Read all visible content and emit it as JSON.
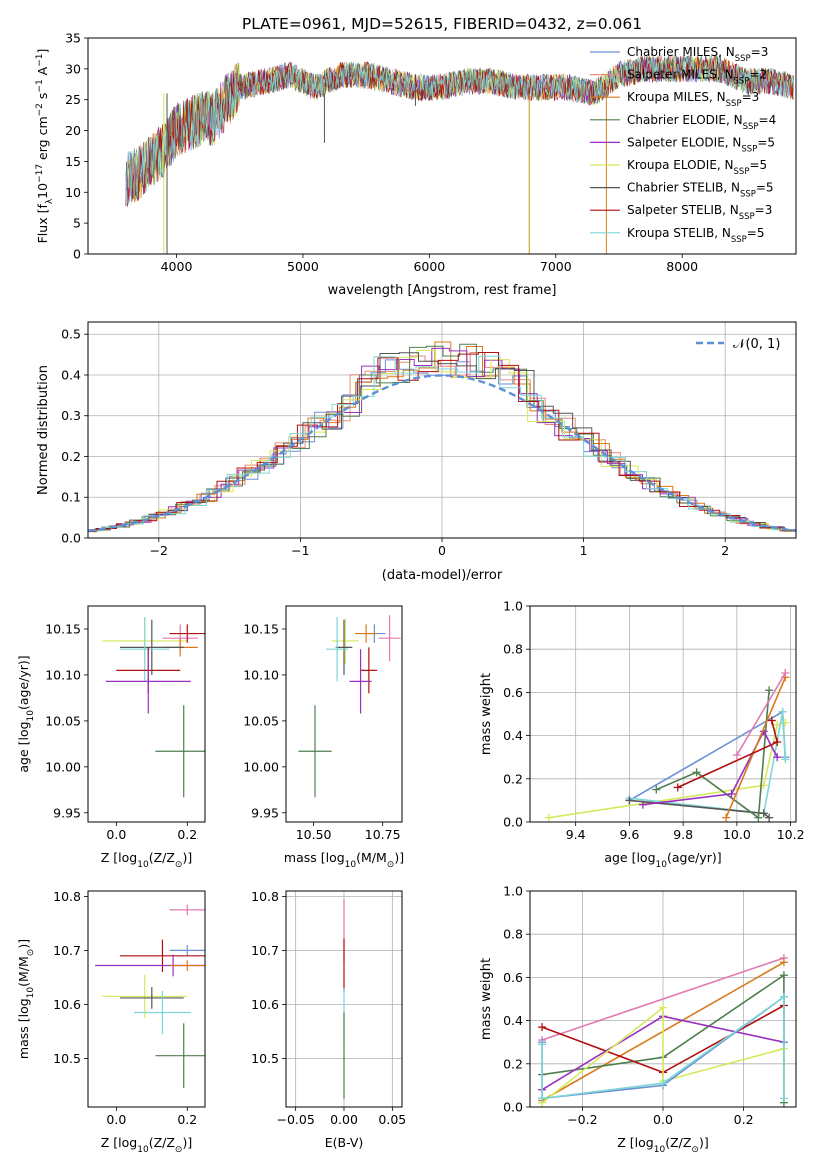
{
  "figure_title": "PLATE=0961, MJD=52615, FIBERID=0432, z=0.061",
  "colors": {
    "chabrier_miles": "#6b8fd6",
    "salpeter_miles": "#e78a7a",
    "kroupa_miles": "#d97a1a",
    "chabrier_elodie": "#4f7f4f",
    "salpeter_elodie": "#9b30c0",
    "kroupa_elodie": "#d6e85a",
    "chabrier_stelib": "#555555",
    "salpeter_stelib": "#b01010",
    "kroupa_stelib": "#7fd6d6",
    "pink": "#e07ab0",
    "gaussian": "#5b8fd6"
  },
  "chart_data": [
    {
      "type": "line",
      "title": "PLATE=0961, MJD=52615, FIBERID=0432, z=0.061",
      "xlabel": "wavelength [Angstrom, rest frame]",
      "ylabel_parts": [
        "Flux [f",
        "λ",
        "10",
        "−17",
        " erg cm",
        "−2",
        " s",
        "−1",
        " A",
        "−1",
        "]"
      ],
      "xlim": [
        3300,
        8900
      ],
      "ylim": [
        0,
        35
      ],
      "xticks": [
        "4000",
        "5000",
        "6000",
        "7000",
        "8000"
      ],
      "yticks": [
        "0",
        "5",
        "10",
        "15",
        "20",
        "25",
        "30",
        "35"
      ],
      "legend": [
        {
          "name": "Chabrier MILES, N",
          "sub": "SSP",
          "val": "=3",
          "color": "#6b8fd6"
        },
        {
          "name": "Salpeter MILES, N",
          "sub": "SSP",
          "val": "=2",
          "color": "#e78a7a"
        },
        {
          "name": "Kroupa MILES, N",
          "sub": "SSP",
          "val": "=3",
          "color": "#d97a1a"
        },
        {
          "name": "Chabrier ELODIE, N",
          "sub": "SSP",
          "val": "=4",
          "color": "#4f7f4f"
        },
        {
          "name": "Salpeter ELODIE, N",
          "sub": "SSP",
          "val": "=5",
          "color": "#9b30c0"
        },
        {
          "name": "Kroupa ELODIE, N",
          "sub": "SSP",
          "val": "=5",
          "color": "#d6e85a"
        },
        {
          "name": "Chabrier STELIB, N",
          "sub": "SSP",
          "val": "=5",
          "color": "#555555"
        },
        {
          "name": "Salpeter STELIB, N",
          "sub": "SSP",
          "val": "=3",
          "color": "#b01010"
        },
        {
          "name": "Kroupa STELIB, N",
          "sub": "SSP",
          "val": "=5",
          "color": "#7fd6d6"
        }
      ],
      "spectrum_envelope": {
        "x": [
          3600,
          3700,
          3800,
          3900,
          4000,
          4100,
          4200,
          4300,
          4400,
          4500,
          4700,
          4900,
          5100,
          5300,
          5500,
          5700,
          5900,
          6100,
          6300,
          6500,
          6700,
          6900,
          7100,
          7300,
          7500,
          7700,
          7900,
          8100,
          8300,
          8500,
          8700,
          8900
        ],
        "y": [
          12,
          13,
          15,
          17,
          20,
          21,
          22,
          22,
          25,
          27,
          28,
          29,
          27,
          29,
          29,
          28,
          27,
          27,
          28,
          28,
          27,
          27,
          27,
          26,
          29,
          30,
          30,
          30,
          30,
          28,
          28,
          27
        ]
      }
    },
    {
      "type": "line",
      "xlabel": "(data-model)/error",
      "ylabel": "Normed distribution",
      "xlim": [
        -2.5,
        2.5
      ],
      "ylim": [
        0,
        0.53
      ],
      "xticks": [
        "−2",
        "−1",
        "0",
        "1",
        "2"
      ],
      "yticks": [
        "0.0",
        "0.1",
        "0.2",
        "0.3",
        "0.4",
        "0.5"
      ],
      "legend_label": "𝒩(0, 1)",
      "grid": true
    },
    {
      "type": "scatter",
      "xlabel_parts": [
        "Z [log",
        "10",
        "(Z/Z",
        "⊙",
        ")]"
      ],
      "ylabel_parts": [
        "age  [log",
        "10",
        "(age/yr)]"
      ],
      "xlim": [
        -0.08,
        0.25
      ],
      "ylim": [
        9.94,
        10.175
      ],
      "xticks": [
        "0.0",
        "0.2"
      ],
      "yticks": [
        "9.95",
        "10.00",
        "10.05",
        "10.10",
        "10.15"
      ],
      "points": [
        {
          "x": 0.08,
          "y": 10.137,
          "xerr": 0.12,
          "yerr": 0.025,
          "color": "#d6e85a"
        },
        {
          "x": 0.18,
          "y": 10.14,
          "xerr": 0.05,
          "yerr": 0.015,
          "color": "#e07ab0"
        },
        {
          "x": 0.2,
          "y": 10.145,
          "xerr": 0.05,
          "yerr": 0.01,
          "color": "#b01010"
        },
        {
          "x": 0.18,
          "y": 10.13,
          "xerr": 0.05,
          "yerr": 0.01,
          "color": "#d97a1a"
        },
        {
          "x": 0.1,
          "y": 10.13,
          "xerr": 0.09,
          "yerr": 0.03,
          "color": "#555555"
        },
        {
          "x": 0.08,
          "y": 10.128,
          "xerr": 0.07,
          "yerr": 0.035,
          "color": "#7fd6d6"
        },
        {
          "x": 0.09,
          "y": 10.105,
          "xerr": 0.09,
          "yerr": 0.025,
          "color": "#b01010"
        },
        {
          "x": 0.09,
          "y": 10.093,
          "xerr": 0.12,
          "yerr": 0.035,
          "color": "#9b30c0"
        },
        {
          "x": 0.19,
          "y": 10.017,
          "xerr": 0.08,
          "yerr": 0.05,
          "color": "#4f7f4f"
        }
      ]
    },
    {
      "type": "scatter",
      "xlabel_parts": [
        "mass [log",
        "10",
        "(M/M",
        "⊙",
        ")]"
      ],
      "xlim": [
        10.4,
        10.82
      ],
      "ylim": [
        9.94,
        10.175
      ],
      "xticks": [
        "10.50",
        "10.75"
      ],
      "yticks": [
        "9.95",
        "10.00",
        "10.05",
        "10.10",
        "10.15"
      ],
      "points": [
        {
          "x": 10.615,
          "y": 10.137,
          "xerr": 0.05,
          "yerr": 0.025,
          "color": "#d6e85a"
        },
        {
          "x": 10.775,
          "y": 10.14,
          "xerr": 0.04,
          "yerr": 0.025,
          "color": "#e07ab0"
        },
        {
          "x": 10.72,
          "y": 10.145,
          "xerr": 0.04,
          "yerr": 0.01,
          "color": "#6b8fd6"
        },
        {
          "x": 10.69,
          "y": 10.145,
          "xerr": 0.04,
          "yerr": 0.01,
          "color": "#d97a1a"
        },
        {
          "x": 10.61,
          "y": 10.13,
          "xerr": 0.03,
          "yerr": 0.03,
          "color": "#555555"
        },
        {
          "x": 10.585,
          "y": 10.128,
          "xerr": 0.04,
          "yerr": 0.035,
          "color": "#7fd6d6"
        },
        {
          "x": 10.7,
          "y": 10.105,
          "xerr": 0.03,
          "yerr": 0.025,
          "color": "#b01010"
        },
        {
          "x": 10.67,
          "y": 10.093,
          "xerr": 0.04,
          "yerr": 0.035,
          "color": "#9b30c0"
        },
        {
          "x": 10.505,
          "y": 10.017,
          "xerr": 0.06,
          "yerr": 0.05,
          "color": "#4f7f4f"
        }
      ]
    },
    {
      "type": "line",
      "xlabel_parts": [
        "age  [log",
        "10",
        "(age/yr)]"
      ],
      "ylabel": "mass weight",
      "xlim": [
        9.23,
        10.22
      ],
      "ylim": [
        0,
        1.0
      ],
      "xticks": [
        "9.4",
        "9.6",
        "9.8",
        "10.0",
        "10.2"
      ],
      "yticks": [
        "0.0",
        "0.2",
        "0.4",
        "0.6",
        "0.8",
        "1.0"
      ],
      "grid": true,
      "series": [
        {
          "color": "#d6e85a",
          "x": [
            9.3,
            10.1,
            10.15,
            10.18
          ],
          "y": [
            0.02,
            0.17,
            0.45,
            0.46
          ]
        },
        {
          "color": "#6b8fd6",
          "x": [
            9.6,
            10.17,
            10.18
          ],
          "y": [
            0.1,
            0.51,
            0.3
          ]
        },
        {
          "color": "#7fd6d6",
          "x": [
            9.6,
            10.1,
            10.17,
            10.18
          ],
          "y": [
            0.11,
            0.04,
            0.51,
            0.29
          ]
        },
        {
          "color": "#555555",
          "x": [
            9.6,
            10.1,
            10.12
          ],
          "y": [
            0.1,
            0.04,
            0.02
          ]
        },
        {
          "color": "#4f7f4f",
          "x": [
            9.7,
            9.85,
            10.08,
            10.12
          ],
          "y": [
            0.15,
            0.23,
            0.02,
            0.61
          ]
        },
        {
          "color": "#9b30c0",
          "x": [
            9.65,
            9.98,
            10.1,
            10.15
          ],
          "y": [
            0.08,
            0.13,
            0.42,
            0.3
          ]
        },
        {
          "color": "#d97a1a",
          "x": [
            9.96,
            10.18
          ],
          "y": [
            0.02,
            0.67
          ]
        },
        {
          "color": "#e07ab0",
          "x": [
            10.0,
            10.18
          ],
          "y": [
            0.31,
            0.69
          ]
        },
        {
          "color": "#b01010",
          "x": [
            9.78,
            10.15,
            10.13
          ],
          "y": [
            0.16,
            0.37,
            0.47
          ]
        }
      ]
    },
    {
      "type": "scatter",
      "xlabel_parts": [
        "Z [log",
        "10",
        "(Z/Z",
        "⊙",
        ")]"
      ],
      "ylabel_parts": [
        "mass [log",
        "10",
        "(M/M",
        "⊙",
        ")]"
      ],
      "xlim": [
        -0.08,
        0.25
      ],
      "ylim": [
        10.41,
        10.81
      ],
      "xticks": [
        "0.0",
        "0.2"
      ],
      "yticks": [
        "10.5",
        "10.6",
        "10.7",
        "10.8"
      ],
      "points": [
        {
          "x": 0.2,
          "y": 10.775,
          "xerr": 0.05,
          "yerr": 0.01,
          "color": "#e07ab0"
        },
        {
          "x": 0.2,
          "y": 10.7,
          "xerr": 0.05,
          "yerr": 0.01,
          "color": "#6b8fd6"
        },
        {
          "x": 0.13,
          "y": 10.69,
          "xerr": 0.12,
          "yerr": 0.03,
          "color": "#b01010"
        },
        {
          "x": 0.16,
          "y": 10.672,
          "xerr": 0.22,
          "yerr": 0.02,
          "color": "#9b30c0"
        },
        {
          "x": 0.2,
          "y": 10.672,
          "xerr": 0.05,
          "yerr": 0.01,
          "color": "#d97a1a"
        },
        {
          "x": 0.08,
          "y": 10.615,
          "xerr": 0.12,
          "yerr": 0.04,
          "color": "#d6e85a"
        },
        {
          "x": 0.1,
          "y": 10.612,
          "xerr": 0.09,
          "yerr": 0.02,
          "color": "#555555"
        },
        {
          "x": 0.13,
          "y": 10.585,
          "xerr": 0.08,
          "yerr": 0.04,
          "color": "#7fd6d6"
        },
        {
          "x": 0.19,
          "y": 10.505,
          "xerr": 0.08,
          "yerr": 0.06,
          "color": "#4f7f4f"
        }
      ]
    },
    {
      "type": "scatter",
      "xlabel": "E(B-V)",
      "xlim": [
        -0.06,
        0.06
      ],
      "ylim": [
        10.41,
        10.81
      ],
      "xticks": [
        "−0.05",
        "0.00",
        "0.05"
      ],
      "yticks": [
        "10.5",
        "10.6",
        "10.7",
        "10.8"
      ],
      "grid": true,
      "points": [
        {
          "x": 0.0,
          "y": 10.735,
          "xerr": 0.0,
          "yerr": 0.06,
          "color": "#e07ab0"
        },
        {
          "x": 0.0,
          "y": 10.672,
          "xerr": 0.0,
          "yerr": 0.05,
          "color": "#b01010"
        },
        {
          "x": 0.0,
          "y": 10.58,
          "xerr": 0.0,
          "yerr": 0.05,
          "color": "#7fd6d6"
        },
        {
          "x": 0.0,
          "y": 10.505,
          "xerr": 0.0,
          "yerr": 0.08,
          "color": "#4f7f4f"
        }
      ]
    },
    {
      "type": "line",
      "xlabel_parts": [
        "Z [log",
        "10",
        "(Z/Z",
        "⊙",
        ")]"
      ],
      "ylabel": "mass weight",
      "xlim": [
        -0.33,
        0.33
      ],
      "ylim": [
        0,
        1.0
      ],
      "xticks": [
        "−0.2",
        "0.0",
        "0.2"
      ],
      "yticks": [
        "0.0",
        "0.2",
        "0.4",
        "0.6",
        "0.8",
        "1.0"
      ],
      "grid": true,
      "series": [
        {
          "color": "#e07ab0",
          "x": [
            -0.3,
            0.3
          ],
          "y": [
            0.31,
            0.69
          ]
        },
        {
          "color": "#d97a1a",
          "x": [
            -0.3,
            0.3
          ],
          "y": [
            0.03,
            0.67
          ]
        },
        {
          "color": "#4f7f4f",
          "x": [
            -0.3,
            0.0,
            0.3,
            0.3
          ],
          "y": [
            0.15,
            0.23,
            0.61,
            0.02
          ]
        },
        {
          "color": "#b01010",
          "x": [
            -0.3,
            0.0,
            0.3
          ],
          "y": [
            0.37,
            0.16,
            0.47
          ]
        },
        {
          "color": "#9b30c0",
          "x": [
            -0.3,
            0.0,
            0.3
          ],
          "y": [
            0.08,
            0.42,
            0.3
          ]
        },
        {
          "color": "#d6e85a",
          "x": [
            -0.3,
            0.0,
            0.0,
            0.3
          ],
          "y": [
            0.02,
            0.46,
            0.12,
            0.27
          ]
        },
        {
          "color": "#6b8fd6",
          "x": [
            -0.3,
            -0.3,
            0.0,
            0.3,
            0.3
          ],
          "y": [
            0.3,
            0.04,
            0.1,
            0.51,
            0.3
          ]
        },
        {
          "color": "#7fd6d6",
          "x": [
            -0.3,
            -0.3,
            0.0,
            0.3,
            0.3
          ],
          "y": [
            0.29,
            0.04,
            0.11,
            0.51,
            0.04
          ]
        }
      ]
    }
  ]
}
